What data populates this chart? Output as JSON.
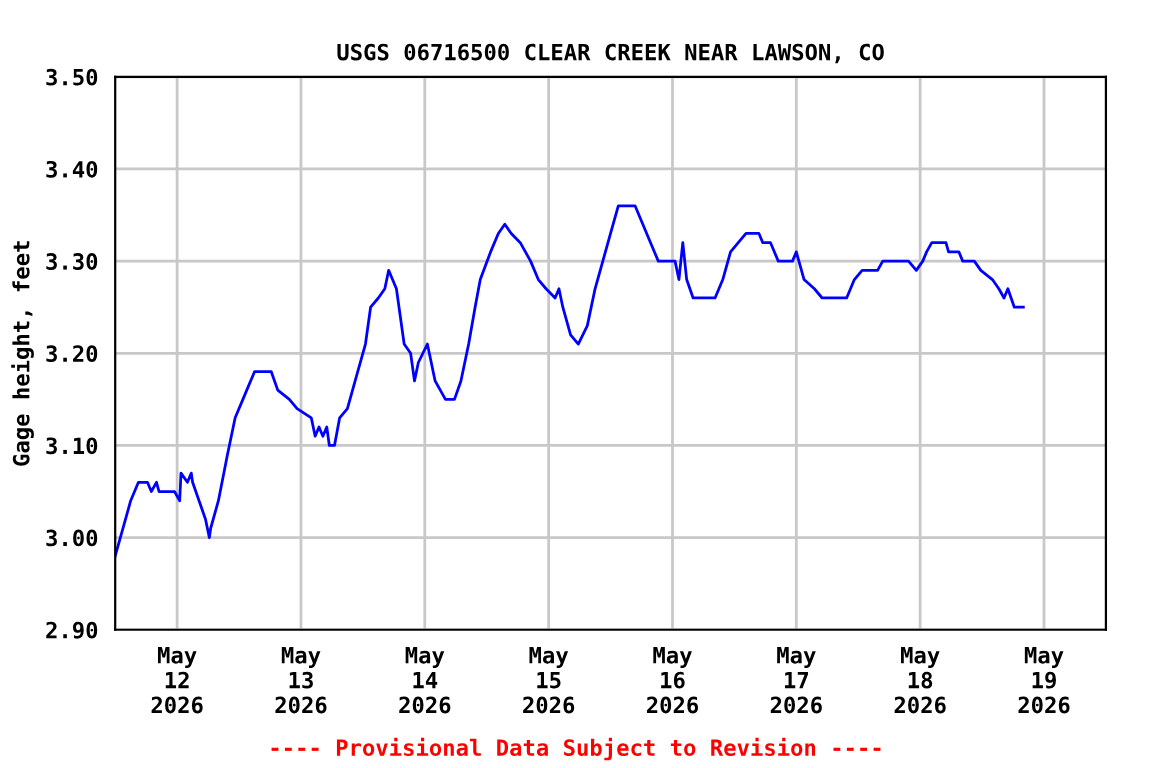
{
  "chart_data": {
    "type": "line",
    "title": "USGS 06716500 CLEAR CREEK NEAR LAWSON, CO",
    "ylabel": "Gage height, feet",
    "annotations": [
      "---- Provisional Data Subject to Revision ----"
    ],
    "x": [
      "2026-05-11T12:00",
      "2026-05-11T13:30",
      "2026-05-11T15:00",
      "2026-05-11T16:30",
      "2026-05-11T18:15",
      "2026-05-11T19:00",
      "2026-05-11T20:00",
      "2026-05-11T20:30",
      "2026-05-11T23:30",
      "2026-05-12T00:30",
      "2026-05-12T00:45",
      "2026-05-12T02:00",
      "2026-05-12T02:45",
      "2026-05-12T03:00",
      "2026-05-12T04:15",
      "2026-05-12T05:30",
      "2026-05-12T06:15",
      "2026-05-12T06:30",
      "2026-05-12T08:00",
      "2026-05-12T09:45",
      "2026-05-12T11:15",
      "2026-05-12T12:45",
      "2026-05-12T13:30",
      "2026-05-12T15:00",
      "2026-05-12T18:15",
      "2026-05-12T19:30",
      "2026-05-12T21:45",
      "2026-05-12T23:15",
      "2026-05-13T02:00",
      "2026-05-13T02:45",
      "2026-05-13T03:30",
      "2026-05-13T04:15",
      "2026-05-13T05:00",
      "2026-05-13T05:30",
      "2026-05-13T06:30",
      "2026-05-13T07:30",
      "2026-05-13T09:00",
      "2026-05-13T10:30",
      "2026-05-13T12:30",
      "2026-05-13T13:30",
      "2026-05-13T15:00",
      "2026-05-13T16:15",
      "2026-05-13T17:00",
      "2026-05-13T18:30",
      "2026-05-13T20:00",
      "2026-05-13T21:15",
      "2026-05-13T22:00",
      "2026-05-13T22:45",
      "2026-05-14T00:30",
      "2026-05-14T02:00",
      "2026-05-14T04:00",
      "2026-05-14T05:45",
      "2026-05-14T07:00",
      "2026-05-14T08:30",
      "2026-05-14T09:45",
      "2026-05-14T10:45",
      "2026-05-14T12:45",
      "2026-05-14T14:15",
      "2026-05-14T15:30",
      "2026-05-14T16:45",
      "2026-05-14T18:30",
      "2026-05-14T20:30",
      "2026-05-14T22:00",
      "2026-05-14T23:30",
      "2026-05-15T01:15",
      "2026-05-15T02:00",
      "2026-05-15T02:45",
      "2026-05-15T04:15",
      "2026-05-15T05:45",
      "2026-05-15T07:30",
      "2026-05-15T09:00",
      "2026-05-15T10:30",
      "2026-05-15T12:00",
      "2026-05-15T13:30",
      "2026-05-15T16:45",
      "2026-05-15T18:15",
      "2026-05-15T19:45",
      "2026-05-15T21:15",
      "2026-05-16T00:30",
      "2026-05-16T01:15",
      "2026-05-16T02:00",
      "2026-05-16T02:45",
      "2026-05-16T04:00",
      "2026-05-16T08:15",
      "2026-05-16T09:45",
      "2026-05-16T11:15",
      "2026-05-16T12:45",
      "2026-05-16T14:15",
      "2026-05-16T16:45",
      "2026-05-16T17:30",
      "2026-05-16T19:00",
      "2026-05-16T20:30",
      "2026-05-16T23:15",
      "2026-05-17T00:00",
      "2026-05-17T01:30",
      "2026-05-17T03:30",
      "2026-05-17T05:00",
      "2026-05-17T09:45",
      "2026-05-17T11:15",
      "2026-05-17T12:45",
      "2026-05-17T15:45",
      "2026-05-17T16:45",
      "2026-05-17T21:45",
      "2026-05-17T23:15",
      "2026-05-18T00:30",
      "2026-05-18T01:15",
      "2026-05-18T02:15",
      "2026-05-18T05:00",
      "2026-05-18T05:30",
      "2026-05-18T07:30",
      "2026-05-18T08:15",
      "2026-05-18T10:30",
      "2026-05-18T11:45",
      "2026-05-18T14:00",
      "2026-05-18T15:15",
      "2026-05-18T16:15",
      "2026-05-18T17:00",
      "2026-05-18T18:15",
      "2026-05-18T20:00"
    ],
    "series": [
      {
        "color": "#0000ff",
        "values": [
          2.98,
          3.01,
          3.04,
          3.06,
          3.06,
          3.05,
          3.06,
          3.05,
          3.05,
          3.04,
          3.07,
          3.06,
          3.07,
          3.06,
          3.04,
          3.02,
          3.0,
          3.01,
          3.04,
          3.09,
          3.13,
          3.15,
          3.16,
          3.18,
          3.18,
          3.16,
          3.15,
          3.14,
          3.13,
          3.11,
          3.12,
          3.11,
          3.12,
          3.1,
          3.1,
          3.13,
          3.14,
          3.17,
          3.21,
          3.25,
          3.26,
          3.27,
          3.29,
          3.27,
          3.21,
          3.2,
          3.17,
          3.19,
          3.21,
          3.17,
          3.15,
          3.15,
          3.17,
          3.21,
          3.25,
          3.28,
          3.31,
          3.33,
          3.34,
          3.33,
          3.32,
          3.3,
          3.28,
          3.27,
          3.26,
          3.27,
          3.25,
          3.22,
          3.21,
          3.23,
          3.27,
          3.3,
          3.33,
          3.36,
          3.36,
          3.34,
          3.32,
          3.3,
          3.3,
          3.28,
          3.32,
          3.28,
          3.26,
          3.26,
          3.28,
          3.31,
          3.32,
          3.33,
          3.33,
          3.32,
          3.32,
          3.3,
          3.3,
          3.31,
          3.28,
          3.27,
          3.26,
          3.26,
          3.28,
          3.29,
          3.29,
          3.3,
          3.3,
          3.29,
          3.3,
          3.31,
          3.32,
          3.32,
          3.31,
          3.31,
          3.3,
          3.3,
          3.29,
          3.28,
          3.27,
          3.26,
          3.27,
          3.25,
          3.25
        ]
      }
    ],
    "xlim": [
      "2026-05-11T12:00",
      "2026-05-19T12:00"
    ],
    "xticks": [
      {
        "value": "2026-05-12",
        "label": "May\n12\n2026"
      },
      {
        "value": "2026-05-13",
        "label": "May\n13\n2026"
      },
      {
        "value": "2026-05-14",
        "label": "May\n14\n2026"
      },
      {
        "value": "2026-05-15",
        "label": "May\n15\n2026"
      },
      {
        "value": "2026-05-16",
        "label": "May\n16\n2026"
      },
      {
        "value": "2026-05-17",
        "label": "May\n17\n2026"
      },
      {
        "value": "2026-05-18",
        "label": "May\n18\n2026"
      },
      {
        "value": "2026-05-19",
        "label": "May\n19\n2026"
      }
    ],
    "ylim": [
      2.9,
      3.5
    ],
    "yticks": [
      {
        "value": 2.9,
        "label": "2.90"
      },
      {
        "value": 3.0,
        "label": "3.00"
      },
      {
        "value": 3.1,
        "label": "3.10"
      },
      {
        "value": 3.2,
        "label": "3.20"
      },
      {
        "value": 3.3,
        "label": "3.30"
      },
      {
        "value": 3.4,
        "label": "3.40"
      },
      {
        "value": 3.5,
        "label": "3.50"
      }
    ],
    "grid": true,
    "legend": false
  }
}
